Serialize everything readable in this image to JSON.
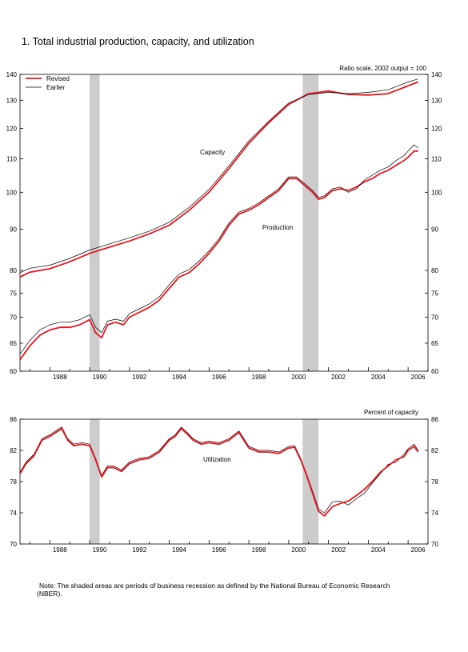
{
  "figure": {
    "title": "1. Total industrial production, capacity, and utilization",
    "note": "Note: The shaded areas are periods of business recession as defined by the National Bureau of Economic Research (NBER)."
  },
  "chart_data": [
    {
      "type": "line",
      "title": "",
      "scale_label": "Ratio scale, 2002 output = 100",
      "y_scale": "log",
      "ylim": [
        60,
        140
      ],
      "y_ticks": [
        60,
        65,
        70,
        75,
        80,
        90,
        100,
        110,
        120,
        130,
        140
      ],
      "xlim": [
        1986.5,
        2007.0
      ],
      "x_tick_labels": [
        "1988",
        "1990",
        "1992",
        "1994",
        "1996",
        "1998",
        "2000",
        "2002",
        "2004",
        "2006"
      ],
      "recessions": [
        [
          1990.0,
          1990.5
        ],
        [
          2000.7,
          2001.5
        ]
      ],
      "legend": {
        "placement": "top-left",
        "entries": [
          {
            "label": "Revised",
            "color": "#e8141c"
          },
          {
            "label": "Earlier",
            "color": "#000000"
          }
        ]
      },
      "annotations": [
        {
          "text": "Capacity"
        },
        {
          "text": "Production"
        }
      ],
      "series": [
        {
          "name": "Capacity (Revised)",
          "color": "#e8141c",
          "x": [
            1986.5,
            1987,
            1988,
            1989,
            1990,
            1991,
            1992,
            1993,
            1994,
            1995,
            1996,
            1997,
            1998,
            1999,
            2000,
            2001,
            2002,
            2003,
            2004,
            2005,
            2006,
            2006.5
          ],
          "y": [
            78.5,
            79.6,
            80.4,
            82.0,
            84.0,
            85.5,
            87.0,
            88.8,
            91.0,
            95.0,
            100.0,
            107.0,
            115.0,
            122.0,
            128.5,
            132.5,
            133.5,
            132.2,
            132.0,
            132.5,
            135.5,
            137.0
          ]
        },
        {
          "name": "Capacity (Earlier)",
          "color": "#000000",
          "x": [
            1986.5,
            1987,
            1988,
            1989,
            1990,
            1991,
            1992,
            1993,
            1994,
            1995,
            1996,
            1997,
            1998,
            1999,
            2000,
            2001,
            2002,
            2003,
            2004,
            2005,
            2006,
            2006.5
          ],
          "y": [
            79.5,
            80.5,
            81.2,
            82.8,
            84.8,
            86.3,
            87.8,
            89.5,
            91.8,
            95.8,
            100.8,
            107.8,
            115.8,
            122.5,
            129.0,
            132.2,
            133.0,
            132.5,
            133.0,
            134.0,
            137.0,
            138.2
          ]
        },
        {
          "name": "Production (Revised)",
          "color": "#e8141c",
          "x": [
            1986.5,
            1987,
            1987.5,
            1988,
            1988.5,
            1989,
            1989.5,
            1990,
            1990.3,
            1990.6,
            1990.9,
            1991.3,
            1991.7,
            1992,
            1992.5,
            1993,
            1993.5,
            1994,
            1994.5,
            1995,
            1995.5,
            1996,
            1996.5,
            1997,
            1997.5,
            1998,
            1998.5,
            1999,
            1999.5,
            2000,
            2000.4,
            2000.8,
            2001.2,
            2001.5,
            2001.8,
            2002.2,
            2002.6,
            2003,
            2003.4,
            2003.8,
            2004.2,
            2004.6,
            2005,
            2005.4,
            2005.8,
            2006,
            2006.3,
            2006.5
          ],
          "y": [
            62.0,
            64.5,
            66.5,
            67.5,
            68.0,
            68.0,
            68.5,
            69.5,
            67.0,
            66.0,
            68.5,
            69.0,
            68.5,
            70.0,
            71.0,
            72.0,
            73.5,
            76.0,
            78.5,
            79.5,
            81.5,
            84.0,
            87.0,
            91.0,
            94.0,
            95.0,
            96.5,
            98.5,
            100.5,
            104.0,
            104.0,
            102.0,
            100.0,
            98.0,
            98.5,
            100.5,
            101.0,
            100.5,
            101.5,
            103.0,
            104.0,
            105.5,
            106.5,
            108.0,
            109.5,
            110.5,
            112.5,
            112.5
          ]
        },
        {
          "name": "Production (Earlier)",
          "color": "#000000",
          "x": [
            1986.5,
            1987,
            1987.5,
            1988,
            1988.5,
            1989,
            1989.5,
            1990,
            1990.3,
            1990.6,
            1990.9,
            1991.3,
            1991.7,
            1992,
            1992.5,
            1993,
            1993.5,
            1994,
            1994.5,
            1995,
            1995.5,
            1996,
            1996.5,
            1997,
            1997.5,
            1998,
            1998.5,
            1999,
            1999.5,
            2000,
            2000.4,
            2000.8,
            2001.2,
            2001.5,
            2001.8,
            2002.2,
            2002.6,
            2003,
            2003.4,
            2003.8,
            2004.2,
            2004.6,
            2005,
            2005.4,
            2005.8,
            2006,
            2006.3,
            2006.5
          ],
          "y": [
            63.0,
            65.5,
            67.5,
            68.5,
            69.0,
            69.0,
            69.5,
            70.5,
            68.0,
            67.0,
            69.2,
            69.6,
            69.2,
            70.7,
            71.7,
            72.7,
            74.2,
            76.8,
            79.2,
            80.2,
            82.2,
            84.6,
            87.6,
            91.6,
            94.5,
            95.5,
            97.0,
            99.0,
            101.0,
            104.5,
            104.5,
            102.5,
            100.5,
            98.5,
            99.0,
            101.0,
            101.5,
            100.0,
            101.0,
            103.5,
            105.0,
            106.5,
            107.5,
            109.5,
            111.0,
            112.5,
            114.5,
            113.5
          ]
        }
      ]
    },
    {
      "type": "line",
      "title": "",
      "scale_label": "Percent of capacity",
      "ylim": [
        70,
        86
      ],
      "y_ticks": [
        70,
        74,
        78,
        82,
        86
      ],
      "xlim": [
        1986.5,
        2007.0
      ],
      "x_tick_labels": [
        "1988",
        "1990",
        "1992",
        "1994",
        "1996",
        "1998",
        "2000",
        "2002",
        "2004",
        "2006"
      ],
      "recessions": [
        [
          1990.0,
          1990.5
        ],
        [
          2000.7,
          2001.5
        ]
      ],
      "annotations": [
        {
          "text": "Utilization"
        }
      ],
      "series": [
        {
          "name": "Utilization (Earlier)",
          "color": "#000000",
          "x": [
            1986.5,
            1986.8,
            1987.2,
            1987.6,
            1988,
            1988.3,
            1988.6,
            1988.9,
            1989.2,
            1989.6,
            1990,
            1990.3,
            1990.6,
            1990.9,
            1991.2,
            1991.6,
            1992,
            1992.5,
            1993,
            1993.5,
            1994,
            1994.3,
            1994.6,
            1994.9,
            1995.2,
            1995.6,
            1996,
            1996.5,
            1997,
            1997.5,
            1998,
            1998.5,
            1999,
            1999.5,
            2000,
            2000.3,
            2000.6,
            2000.9,
            2001.2,
            2001.5,
            2001.8,
            2002.2,
            2002.6,
            2003,
            2003.4,
            2003.8,
            2004.2,
            2004.6,
            2005,
            2005.4,
            2005.8,
            2006,
            2006.3,
            2006.5
          ],
          "y": [
            79.2,
            80.5,
            81.5,
            83.5,
            84.0,
            84.5,
            85.0,
            83.5,
            82.8,
            83.0,
            82.8,
            81.0,
            78.8,
            80.0,
            80.0,
            79.5,
            80.5,
            81.0,
            81.2,
            82.0,
            83.5,
            84.0,
            85.0,
            84.3,
            83.5,
            83.0,
            83.2,
            83.0,
            83.5,
            84.5,
            82.5,
            82.0,
            82.0,
            81.8,
            82.5,
            82.6,
            81.0,
            79.0,
            76.8,
            74.5,
            74.0,
            75.4,
            75.5,
            75.0,
            75.8,
            76.5,
            77.8,
            79.0,
            80.2,
            80.5,
            81.5,
            82.2,
            82.8,
            82.0
          ]
        },
        {
          "name": "Utilization (Revised)",
          "color": "#e8141c",
          "x": [
            1986.5,
            1986.8,
            1987.2,
            1987.6,
            1988,
            1988.3,
            1988.6,
            1988.9,
            1989.2,
            1989.6,
            1990,
            1990.3,
            1990.6,
            1990.9,
            1991.2,
            1991.6,
            1992,
            1992.5,
            1993,
            1993.5,
            1994,
            1994.3,
            1994.6,
            1994.9,
            1995.2,
            1995.6,
            1996,
            1996.5,
            1997,
            1997.5,
            1998,
            1998.5,
            1999,
            1999.5,
            2000,
            2000.3,
            2000.6,
            2000.9,
            2001.2,
            2001.5,
            2001.8,
            2002.2,
            2002.6,
            2003,
            2003.4,
            2003.8,
            2004.2,
            2004.6,
            2005,
            2005.4,
            2005.8,
            2006,
            2006.3,
            2006.5
          ],
          "y": [
            79.0,
            80.3,
            81.3,
            83.3,
            83.8,
            84.3,
            84.8,
            83.3,
            82.6,
            82.8,
            82.6,
            80.8,
            78.6,
            79.8,
            79.8,
            79.3,
            80.3,
            80.8,
            81.0,
            81.8,
            83.3,
            83.8,
            84.8,
            84.1,
            83.3,
            82.8,
            83.0,
            82.8,
            83.3,
            84.3,
            82.3,
            81.8,
            81.8,
            81.6,
            82.3,
            82.4,
            80.8,
            78.8,
            76.5,
            74.2,
            73.6,
            74.8,
            75.2,
            75.5,
            76.2,
            77.0,
            78.0,
            79.2,
            80.0,
            80.8,
            81.2,
            82.0,
            82.5,
            81.8
          ]
        }
      ]
    }
  ]
}
